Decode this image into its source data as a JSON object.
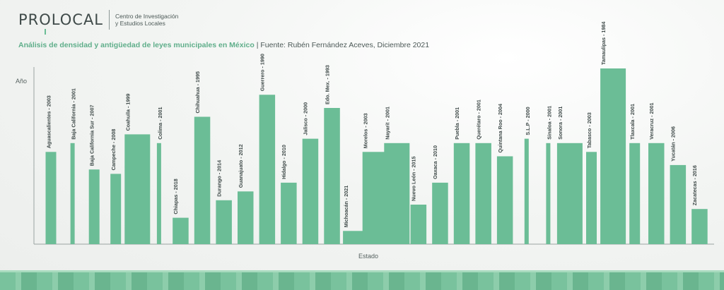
{
  "header": {
    "logo_text": "PROLOCAL",
    "org_line1": "Centro de Investigación",
    "org_line2": "y Estudios Locales"
  },
  "subtitle": {
    "title": "Análisis de densidad y antigüedad de leyes municipales en México",
    "separator": "|",
    "source": "Fuente: Rubén Fernández Aceves, Diciembre 2021"
  },
  "colors": {
    "bar": "#6bbd96",
    "axis": "#9aa4a2",
    "accent": "#5fae8a"
  },
  "chart_data": {
    "type": "bar",
    "xlabel": "Estado",
    "ylabel": "Año",
    "categories": [
      "Aguascalientes - 2003",
      "Baja California - 2001",
      "Baja California Sur - 2007",
      "Campeche - 2008",
      "Coahuila - 1999",
      "Colima - 2001",
      "Chiapas - 2018",
      "Chihuahua - 1995",
      "Durango - 2014",
      "Guanajuato - 2012",
      "Guerrero - 1990",
      "Hidalgo - 2010",
      "Jalisco - 2000",
      "Edo. Mex. - 1993",
      "Michoacán - 2021",
      "Morelos - 2003",
      "Nayarit - 2001",
      "Nuevo León - 2015",
      "Oaxaca - 2010",
      "Puebla - 2001",
      "Querétaro - 2001",
      "Quintana Roo - 2004",
      "S.L.P - 2000",
      "Sinaloa - 2001",
      "Sonora - 2001",
      "Tabasco - 2003",
      "Tamaulipas - 1984",
      "Tlaxcala - 2001",
      "Veracruz - 2001",
      "Yucatán - 2006",
      "Zacatecas - 2016"
    ],
    "years": [
      2003,
      2001,
      2007,
      2008,
      1999,
      2001,
      2018,
      1995,
      2014,
      2012,
      1990,
      2010,
      2000,
      1993,
      2021,
      2003,
      2001,
      2015,
      2010,
      2001,
      2001,
      2004,
      2000,
      2001,
      2001,
      2003,
      1984,
      2001,
      2001,
      2006,
      2016
    ],
    "bar_width_rel": [
      1,
      0.4,
      1,
      1,
      2.4,
      0.4,
      1.5,
      1.5,
      1.5,
      1.5,
      1.5,
      1.5,
      1.5,
      1.5,
      2,
      2.4,
      2.4,
      1.5,
      1.5,
      1.5,
      1.5,
      1.5,
      0.4,
      0.4,
      2.4,
      1,
      2.4,
      1,
      1.5,
      1.5,
      1.5
    ],
    "ylim": [
      2024,
      1984
    ]
  }
}
